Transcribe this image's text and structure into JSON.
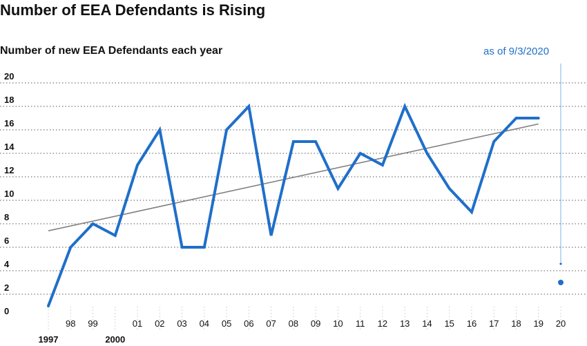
{
  "title": "Number of EEA Defendants is Rising",
  "chart_data": {
    "type": "line",
    "title": "Number of EEA Defendants is Rising",
    "subtitle": "Number of new EEA Defendants each year",
    "annotation": "as of 9/3/2020",
    "x": [
      1997,
      1998,
      1999,
      2000,
      2001,
      2002,
      2003,
      2004,
      2005,
      2006,
      2007,
      2008,
      2009,
      2010,
      2011,
      2012,
      2013,
      2014,
      2015,
      2016,
      2017,
      2018,
      2019,
      2020
    ],
    "x_tick_labels": [
      "1997",
      "98",
      "99",
      "2000",
      "01",
      "02",
      "03",
      "04",
      "05",
      "06",
      "07",
      "08",
      "09",
      "10",
      "11",
      "12",
      "13",
      "14",
      "15",
      "16",
      "17",
      "18",
      "19",
      "20"
    ],
    "x_major_ticks": [
      "1997",
      "2000"
    ],
    "series": [
      {
        "values": [
          1,
          6,
          8,
          7,
          13,
          16,
          6,
          6,
          16,
          18,
          7,
          15,
          15,
          11,
          14,
          13,
          18,
          14,
          11,
          9,
          15,
          17,
          17,
          3
        ]
      }
    ],
    "trendline": {
      "start": [
        1997,
        7.4
      ],
      "end": [
        2019,
        16.5
      ]
    },
    "ylim": [
      0,
      20
    ],
    "yticks": [
      0,
      2,
      4,
      6,
      8,
      10,
      12,
      14,
      16,
      18,
      20
    ],
    "grid": "horizontal dotted",
    "line_color": "#1f6fc9",
    "trend_color": "#808080",
    "xlabel": "",
    "ylabel": ""
  }
}
